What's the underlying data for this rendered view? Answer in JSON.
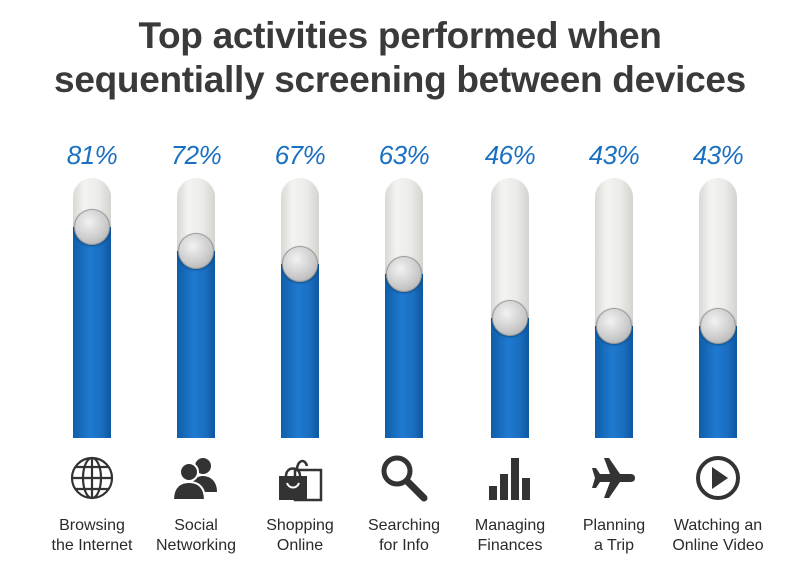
{
  "title_lines": [
    "Top activities performed when",
    "sequentially screening between devices"
  ],
  "colors": {
    "accent": "#1a70c1",
    "track": "#ececea",
    "text": "#3a3a3a"
  },
  "chart_data": {
    "type": "bar",
    "title": "Top activities performed when sequentially screening between devices",
    "categories": [
      "Browsing the Internet",
      "Social Networking",
      "Shopping Online",
      "Searching for Info",
      "Managing Finances",
      "Planning a Trip",
      "Watching an Online Video"
    ],
    "values": [
      81,
      72,
      67,
      63,
      46,
      43,
      43
    ],
    "value_labels": [
      "81%",
      "72%",
      "67%",
      "63%",
      "46%",
      "43%",
      "43%"
    ],
    "xlabel": "",
    "ylabel": "",
    "ylim": [
      0,
      100
    ],
    "grid": false,
    "unit": "%"
  },
  "items": [
    {
      "pct": "81%",
      "label_lines": [
        "Browsing",
        "the Internet"
      ],
      "icon": "globe-icon"
    },
    {
      "pct": "72%",
      "label_lines": [
        "Social",
        "Networking"
      ],
      "icon": "people-icon"
    },
    {
      "pct": "67%",
      "label_lines": [
        "Shopping",
        "Online"
      ],
      "icon": "shopping-bags-icon"
    },
    {
      "pct": "63%",
      "label_lines": [
        "Searching",
        "for Info"
      ],
      "icon": "magnifier-icon"
    },
    {
      "pct": "46%",
      "label_lines": [
        "Managing",
        "Finances"
      ],
      "icon": "bar-chart-icon"
    },
    {
      "pct": "43%",
      "label_lines": [
        "Planning",
        "a Trip"
      ],
      "icon": "airplane-icon"
    },
    {
      "pct": "43%",
      "label_lines": [
        "Watching an",
        "Online Video"
      ],
      "icon": "play-button-icon"
    }
  ]
}
